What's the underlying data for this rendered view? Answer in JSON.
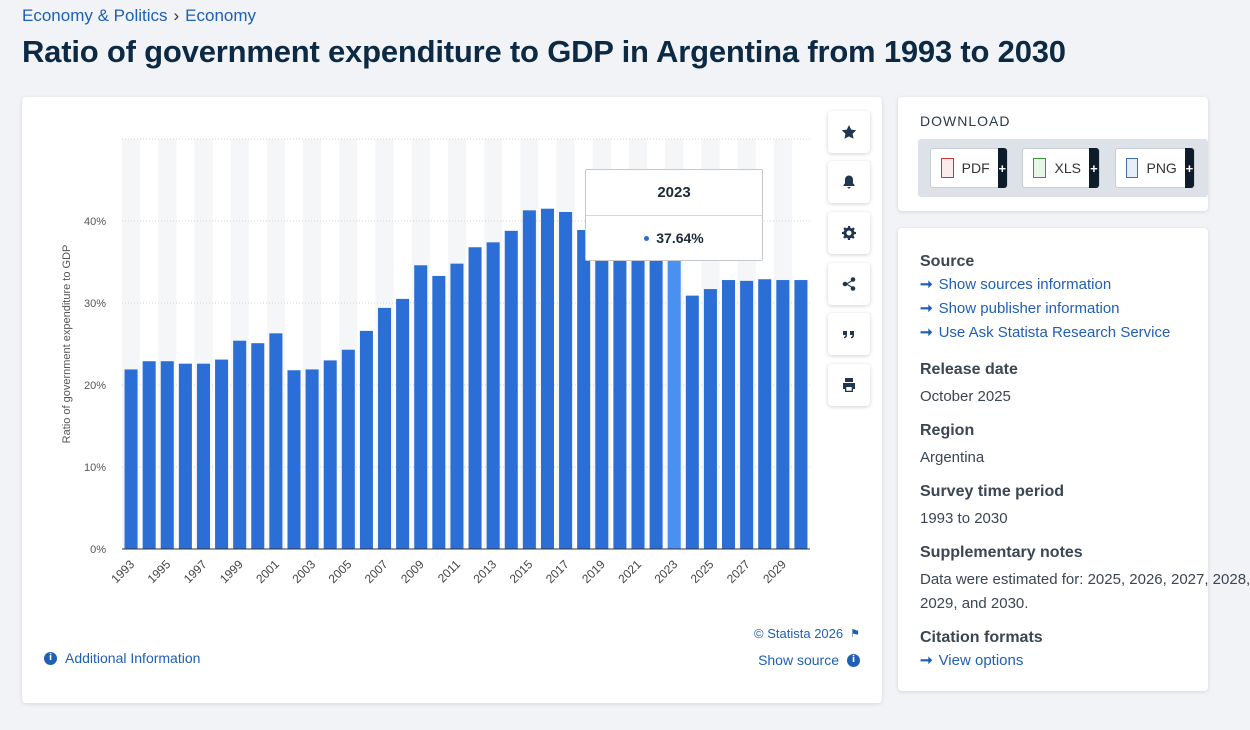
{
  "breadcrumb": {
    "level1": "Economy & Politics",
    "separator": "›",
    "level2": "Economy"
  },
  "title": "Ratio of government expenditure to GDP in Argentina from 1993 to 2030",
  "chart_data": {
    "type": "bar",
    "ylabel": "Ratio of government expenditure to GDP",
    "xlabel": "",
    "ylim": [
      0,
      50
    ],
    "yticks": [
      0,
      10,
      20,
      30,
      40
    ],
    "ytick_labels": [
      "0%",
      "10%",
      "20%",
      "30%",
      "40%"
    ],
    "categories": [
      "1993",
      "1994",
      "1995",
      "1996",
      "1997",
      "1998",
      "1999",
      "2000",
      "2001",
      "2002",
      "2003",
      "2004",
      "2005",
      "2006",
      "2007",
      "2008",
      "2009",
      "2010",
      "2011",
      "2012",
      "2013",
      "2014",
      "2015",
      "2016",
      "2017",
      "2018",
      "2019",
      "2020",
      "2021",
      "2022",
      "2023",
      "2024",
      "2025",
      "2026",
      "2027",
      "2028",
      "2029",
      "2030"
    ],
    "xtick_labels": [
      "1993",
      "1995",
      "1997",
      "1999",
      "2001",
      "2003",
      "2005",
      "2007",
      "2009",
      "2011",
      "2013",
      "2015",
      "2017",
      "2019",
      "2021",
      "2023",
      "2025",
      "2027",
      "2029"
    ],
    "values": [
      21.9,
      22.9,
      22.9,
      22.6,
      22.6,
      23.1,
      25.4,
      25.1,
      26.3,
      21.8,
      21.9,
      23.0,
      24.3,
      26.6,
      29.4,
      30.5,
      34.6,
      33.3,
      34.8,
      36.8,
      37.4,
      38.8,
      41.3,
      41.5,
      41.1,
      38.9,
      38.1,
      37.9,
      37.8,
      37.9,
      37.64,
      30.9,
      31.7,
      32.8,
      32.7,
      32.9,
      32.8,
      32.8
    ],
    "highlight_index": 30,
    "bar_color": "#2b6fd6",
    "highlight_color": "#4a90f0",
    "tooltip": {
      "year": "2023",
      "value": "37.64%"
    }
  },
  "footer": {
    "copyright": "© Statista 2026",
    "additional_info": "Additional Information",
    "show_source": "Show source"
  },
  "download": {
    "title": "DOWNLOAD",
    "buttons": [
      {
        "label": "PDF",
        "plus": "+"
      },
      {
        "label": "XLS",
        "plus": "+"
      },
      {
        "label": "PNG",
        "plus": "+"
      }
    ]
  },
  "info": {
    "source": {
      "heading": "Source",
      "links": [
        "Show sources information",
        "Show publisher information",
        "Use Ask Statista Research Service"
      ]
    },
    "release_date": {
      "heading": "Release date",
      "value": "October 2025"
    },
    "region": {
      "heading": "Region",
      "value": "Argentina"
    },
    "survey_period": {
      "heading": "Survey time period",
      "value": "1993 to 2030"
    },
    "notes": {
      "heading": "Supplementary notes",
      "line1": "Data were estimated for: 2025, 2026, 2027, 2028,",
      "line2": "2029, and 2030."
    },
    "citation": {
      "heading": "Citation formats",
      "link": "View options"
    }
  },
  "colors": {
    "link": "#1f5fb4",
    "title": "#0d2a45"
  }
}
